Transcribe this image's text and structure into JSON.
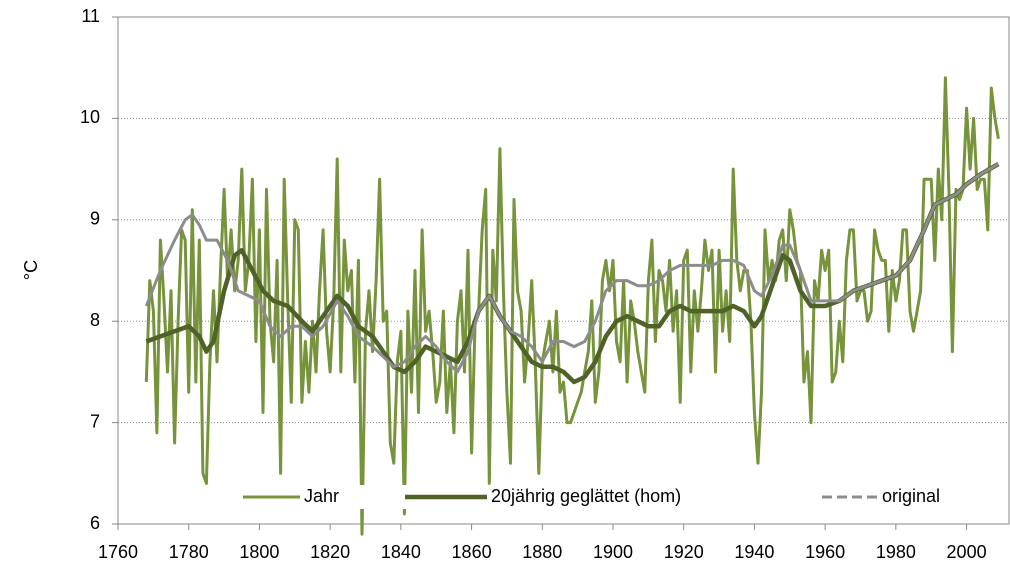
{
  "chart_data": {
    "type": "line",
    "y_label": "°C",
    "xlim": [
      1760,
      2012
    ],
    "ylim": [
      6,
      11
    ],
    "xticks": [
      1760,
      1780,
      1800,
      1820,
      1840,
      1860,
      1880,
      1900,
      1920,
      1940,
      1960,
      1980,
      2000
    ],
    "yticks": [
      6,
      7,
      8,
      9,
      10,
      11
    ],
    "grid": true,
    "legend": "lower center",
    "series": [
      {
        "name": "Jahr",
        "color": "#77933c",
        "width": 3,
        "x": [
          1768,
          1769,
          1770,
          1771,
          1772,
          1773,
          1774,
          1775,
          1776,
          1777,
          1778,
          1779,
          1780,
          1781,
          1782,
          1783,
          1784,
          1785,
          1786,
          1787,
          1788,
          1789,
          1790,
          1791,
          1792,
          1793,
          1794,
          1795,
          1796,
          1797,
          1798,
          1799,
          1800,
          1801,
          1802,
          1803,
          1804,
          1805,
          1806,
          1807,
          1808,
          1809,
          1810,
          1811,
          1812,
          1813,
          1814,
          1815,
          1816,
          1817,
          1818,
          1819,
          1820,
          1821,
          1822,
          1823,
          1824,
          1825,
          1826,
          1827,
          1828,
          1829,
          1830,
          1831,
          1832,
          1833,
          1834,
          1835,
          1836,
          1837,
          1838,
          1839,
          1840,
          1841,
          1842,
          1843,
          1844,
          1845,
          1846,
          1847,
          1848,
          1849,
          1850,
          1851,
          1852,
          1853,
          1854,
          1855,
          1856,
          1857,
          1858,
          1859,
          1860,
          1861,
          1862,
          1863,
          1864,
          1865,
          1866,
          1867,
          1868,
          1869,
          1870,
          1871,
          1872,
          1873,
          1874,
          1875,
          1876,
          1877,
          1878,
          1879,
          1880,
          1881,
          1882,
          1883,
          1884,
          1885,
          1886,
          1887,
          1888,
          1889,
          1890,
          1891,
          1892,
          1893,
          1894,
          1895,
          1896,
          1897,
          1898,
          1899,
          1900,
          1901,
          1902,
          1903,
          1904,
          1905,
          1906,
          1907,
          1908,
          1909,
          1910,
          1911,
          1912,
          1913,
          1914,
          1915,
          1916,
          1917,
          1918,
          1919,
          1920,
          1921,
          1922,
          1923,
          1924,
          1925,
          1926,
          1927,
          1928,
          1929,
          1930,
          1931,
          1932,
          1933,
          1934,
          1935,
          1936,
          1937,
          1938,
          1939,
          1940,
          1941,
          1942,
          1943,
          1944,
          1945,
          1946,
          1947,
          1948,
          1949,
          1950,
          1951,
          1952,
          1953,
          1954,
          1955,
          1956,
          1957,
          1958,
          1959,
          1960,
          1961,
          1962,
          1963,
          1964,
          1965,
          1966,
          1967,
          1968,
          1969,
          1970,
          1971,
          1972,
          1973,
          1974,
          1975,
          1976,
          1977,
          1978,
          1979,
          1980,
          1981,
          1982,
          1983,
          1984,
          1985,
          1986,
          1987,
          1988,
          1989,
          1990,
          1991,
          1992,
          1993,
          1994,
          1995,
          1996,
          1997,
          1998,
          1999,
          2000,
          2001,
          2002,
          2003,
          2004,
          2005,
          2006,
          2007,
          2008,
          2009
        ],
        "values": [
          7.4,
          8.4,
          8.1,
          6.9,
          8.8,
          8.2,
          7.5,
          8.3,
          6.8,
          8.0,
          8.9,
          8.8,
          7.3,
          9.1,
          7.4,
          8.8,
          6.5,
          6.4,
          7.6,
          8.3,
          7.6,
          8.5,
          9.3,
          8.4,
          8.9,
          8.3,
          8.6,
          9.5,
          8.3,
          8.6,
          9.4,
          7.8,
          8.9,
          7.1,
          9.3,
          8.0,
          7.6,
          8.6,
          6.5,
          9.4,
          8.2,
          7.2,
          9.0,
          8.9,
          7.2,
          7.8,
          7.3,
          8.0,
          7.5,
          8.3,
          8.9,
          7.9,
          7.5,
          8.2,
          9.6,
          7.5,
          8.8,
          8.3,
          8.5,
          7.4,
          8.6,
          5.9,
          7.9,
          8.3,
          7.7,
          8.4,
          9.4,
          8.0,
          8.1,
          6.8,
          6.6,
          7.6,
          7.9,
          6.1,
          8.1,
          7.3,
          8.5,
          7.1,
          8.9,
          7.9,
          8.1,
          7.7,
          7.2,
          7.4,
          8.1,
          7.1,
          7.6,
          6.9,
          8.0,
          8.3,
          7.5,
          8.7,
          6.7,
          8.0,
          8.1,
          8.9,
          9.3,
          6.4,
          8.7,
          8.2,
          9.7,
          8.3,
          7.3,
          6.6,
          9.2,
          8.3,
          8.1,
          7.4,
          7.8,
          8.4,
          7.6,
          6.5,
          7.6,
          7.8,
          8.0,
          7.5,
          8.1,
          7.3,
          7.4,
          7.0,
          7.0,
          7.1,
          7.2,
          7.3,
          7.5,
          7.7,
          8.2,
          7.2,
          7.5,
          8.4,
          8.6,
          8.3,
          8.6,
          7.8,
          7.6,
          8.4,
          7.4,
          8.2,
          8.0,
          7.7,
          7.5,
          7.3,
          8.4,
          8.8,
          7.8,
          8.5,
          8.4,
          8.1,
          8.6,
          7.9,
          8.3,
          7.2,
          8.6,
          8.7,
          7.5,
          8.3,
          7.9,
          8.3,
          8.8,
          8.5,
          8.7,
          7.5,
          8.7,
          7.9,
          8.3,
          7.8,
          9.5,
          8.6,
          8.3,
          8.5,
          8.5,
          8.0,
          7.1,
          6.6,
          7.3,
          8.9,
          8.4,
          8.6,
          8.4,
          8.8,
          8.9,
          8.4,
          9.1,
          8.9,
          8.6,
          8.5,
          7.4,
          7.7,
          7.0,
          8.4,
          8.2,
          8.7,
          8.5,
          8.7,
          7.4,
          7.5,
          8.0,
          7.6,
          8.6,
          8.9,
          8.9,
          8.2,
          8.3,
          8.3,
          8.0,
          8.1,
          8.9,
          8.7,
          8.6,
          8.6,
          7.9,
          8.5,
          8.2,
          8.4,
          8.9,
          8.9,
          8.1,
          7.9,
          8.1,
          8.3,
          9.4,
          9.4,
          9.4,
          8.6,
          9.5,
          9.0,
          10.4,
          9.3,
          7.7,
          9.3,
          9.2,
          9.3,
          10.1,
          9.5,
          10.0,
          9.3,
          9.4,
          9.4,
          8.9,
          10.3,
          10.0,
          9.8
        ]
      },
      {
        "name": "20jährig geglättet (hom)",
        "color": "#4f6228",
        "width": 4.5,
        "x": [
          1768,
          1772,
          1776,
          1780,
          1783,
          1785,
          1787,
          1790,
          1793,
          1795,
          1798,
          1801,
          1804,
          1808,
          1812,
          1815,
          1818,
          1822,
          1825,
          1828,
          1832,
          1835,
          1838,
          1841,
          1844,
          1847,
          1850,
          1853,
          1856,
          1859,
          1862,
          1865,
          1868,
          1871,
          1874,
          1877,
          1880,
          1883,
          1886,
          1889,
          1892,
          1895,
          1898,
          1901,
          1904,
          1907,
          1910,
          1913,
          1916,
          1919,
          1922,
          1925,
          1928,
          1931,
          1934,
          1937,
          1940,
          1942,
          1945,
          1948,
          1950,
          1953,
          1956,
          1960,
          1964,
          1968,
          1972,
          1976,
          1980,
          1984,
          1988,
          1991,
          1994,
          1997,
          2000,
          2004,
          2009
        ],
        "values": [
          7.8,
          7.85,
          7.9,
          7.95,
          7.85,
          7.7,
          7.8,
          8.3,
          8.65,
          8.7,
          8.5,
          8.3,
          8.2,
          8.15,
          8.0,
          7.9,
          8.05,
          8.25,
          8.15,
          7.95,
          7.85,
          7.7,
          7.55,
          7.5,
          7.6,
          7.75,
          7.7,
          7.65,
          7.6,
          7.8,
          8.1,
          8.25,
          8.05,
          7.9,
          7.75,
          7.6,
          7.55,
          7.55,
          7.5,
          7.4,
          7.45,
          7.6,
          7.85,
          8.0,
          8.05,
          8.0,
          7.95,
          7.95,
          8.1,
          8.15,
          8.1,
          8.1,
          8.1,
          8.1,
          8.15,
          8.1,
          7.95,
          8.05,
          8.35,
          8.65,
          8.6,
          8.3,
          8.15,
          8.15,
          8.2,
          8.3,
          8.35,
          8.4,
          8.45,
          8.6,
          8.9,
          9.15,
          9.2,
          9.25,
          9.35,
          9.45,
          9.55
        ]
      },
      {
        "name": "original",
        "color": "#8c8c8c",
        "width": 3,
        "x": [
          1768,
          1772,
          1776,
          1779,
          1781,
          1783,
          1785,
          1788,
          1791,
          1794,
          1797,
          1800,
          1803,
          1806,
          1809,
          1812,
          1815,
          1818,
          1822,
          1825,
          1828,
          1832,
          1835,
          1838,
          1841,
          1844,
          1847,
          1850,
          1853,
          1856,
          1859,
          1862,
          1865,
          1868,
          1871,
          1874,
          1877,
          1880,
          1883,
          1886,
          1889,
          1892,
          1895,
          1898,
          1901,
          1904,
          1907,
          1910,
          1913,
          1916,
          1919,
          1922,
          1925,
          1928,
          1931,
          1934,
          1937,
          1940,
          1942,
          1945,
          1948,
          1950,
          1953,
          1956,
          1960,
          1964,
          1968,
          1972,
          1976,
          1980,
          1984,
          1988,
          1991,
          1994,
          1997,
          2000,
          2004,
          2009
        ],
        "values": [
          8.15,
          8.5,
          8.8,
          9.0,
          9.05,
          8.95,
          8.8,
          8.8,
          8.6,
          8.3,
          8.25,
          8.2,
          7.95,
          7.85,
          7.95,
          7.95,
          7.85,
          7.95,
          8.2,
          8.05,
          7.85,
          7.75,
          7.65,
          7.55,
          7.6,
          7.75,
          7.85,
          7.75,
          7.6,
          7.5,
          7.7,
          8.1,
          8.25,
          8.05,
          7.9,
          7.85,
          7.75,
          7.6,
          7.8,
          7.8,
          7.75,
          7.8,
          8.0,
          8.3,
          8.4,
          8.4,
          8.35,
          8.35,
          8.4,
          8.5,
          8.55,
          8.55,
          8.55,
          8.55,
          8.6,
          8.6,
          8.55,
          8.3,
          8.25,
          8.45,
          8.75,
          8.75,
          8.5,
          8.2,
          8.2,
          8.2,
          8.3,
          8.35,
          8.4,
          8.45,
          8.6,
          8.9,
          9.15,
          9.2,
          9.25,
          9.35,
          9.45,
          9.55
        ]
      }
    ]
  }
}
